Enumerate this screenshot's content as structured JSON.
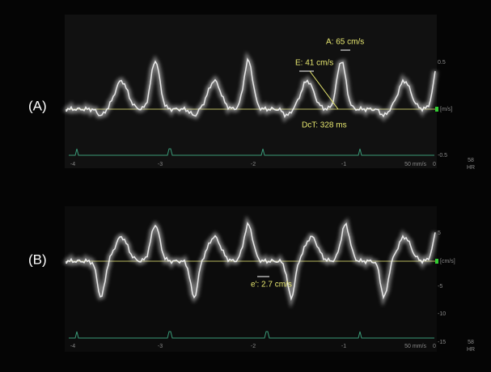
{
  "panels": [
    {
      "label": "(A)",
      "annotations": [
        "A: 65 cm/s",
        "E: 41 cm/s",
        "DcT: 328 ms"
      ],
      "yticks": [
        "0.5",
        "-0.5"
      ],
      "unit": "[m/s]",
      "xticks": [
        "-4",
        "-3",
        "-2",
        "-1",
        "0"
      ],
      "hr_value": "58",
      "hr_label": "HR",
      "speed": "50 mm/s"
    },
    {
      "label": "(B)",
      "annotations": [
        "e': 2.7 cm/s"
      ],
      "yticks": [
        "5",
        "-5",
        "-10",
        "-15"
      ],
      "unit": "[cm/s]",
      "xticks": [
        "-4",
        "-3",
        "-2",
        "-1",
        "0"
      ],
      "hr_value": "58",
      "hr_label": "HR",
      "speed": "50 mm/s"
    }
  ]
}
